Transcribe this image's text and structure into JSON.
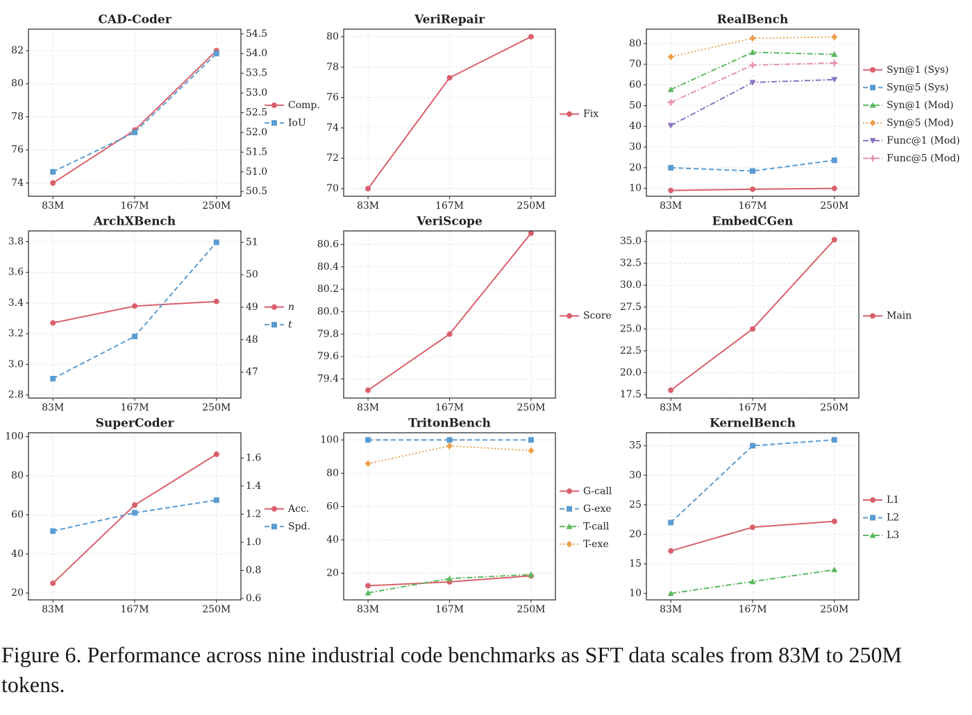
{
  "caption": "Figure 6. Performance across nine industrial code benchmarks as SFT data scales from 83M to 250M tokens.",
  "colors": {
    "red": "#d9606b",
    "blue": "#5a9bd0",
    "green": "#5cb85f",
    "orange": "#eba150",
    "purple": "#8b72c0",
    "pink": "#e68fae",
    "grid": "#dcdcdc"
  },
  "chart_data": [
    {
      "title": "CAD-Coder",
      "type": "line",
      "categories": [
        "83M",
        "167M",
        "250M"
      ],
      "ylim": [
        73.2,
        83.3
      ],
      "yticks": [
        74,
        76,
        78,
        80,
        82
      ],
      "y2lim": [
        50.38,
        54.62
      ],
      "y2ticks": [
        "50.5",
        "51.0",
        "51.5",
        "52.0",
        "52.5",
        "53.0",
        "53.5",
        "54.0",
        "54.5"
      ],
      "series": [
        {
          "name": "Comp.",
          "values": [
            74.0,
            77.2,
            82.0
          ],
          "axis": "left",
          "color": "red",
          "dash": "solid",
          "marker": "circle"
        },
        {
          "name": "IoU",
          "values": [
            51.0,
            52.0,
            54.0
          ],
          "axis": "right",
          "color": "blue",
          "dash": "dash",
          "marker": "square"
        }
      ]
    },
    {
      "title": "VeriRepair",
      "type": "line",
      "categories": [
        "83M",
        "167M",
        "250M"
      ],
      "ylim": [
        69.5,
        80.5
      ],
      "yticks": [
        70,
        72,
        74,
        76,
        78,
        80
      ],
      "series": [
        {
          "name": "Fix",
          "values": [
            70.0,
            77.3,
            80.0
          ],
          "axis": "left",
          "color": "red",
          "dash": "solid",
          "marker": "circle"
        }
      ]
    },
    {
      "title": "RealBench",
      "type": "line",
      "categories": [
        "83M",
        "167M",
        "250M"
      ],
      "ylim": [
        6.2,
        87.0
      ],
      "yticks": [
        10,
        20,
        30,
        40,
        50,
        60,
        70,
        80
      ],
      "series": [
        {
          "name": "Syn@1 (Sys)",
          "values": [
            9.0,
            9.6,
            10.0
          ],
          "axis": "left",
          "color": "red",
          "dash": "solid",
          "marker": "circle"
        },
        {
          "name": "Syn@5 (Sys)",
          "values": [
            20.0,
            18.4,
            23.6
          ],
          "axis": "left",
          "color": "blue",
          "dash": "dash",
          "marker": "square"
        },
        {
          "name": "Syn@1 (Mod)",
          "values": [
            57.8,
            75.8,
            74.8
          ],
          "axis": "left",
          "color": "green",
          "dash": "dashdot",
          "marker": "triangle-up"
        },
        {
          "name": "Syn@5 (Mod)",
          "values": [
            73.6,
            82.6,
            83.2
          ],
          "axis": "left",
          "color": "orange",
          "dash": "dot",
          "marker": "diamond"
        },
        {
          "name": "Func@1 (Mod)",
          "values": [
            40.4,
            61.2,
            62.6
          ],
          "axis": "left",
          "color": "purple",
          "dash": "dashdot",
          "marker": "triangle-down"
        },
        {
          "name": "Func@5 (Mod)",
          "values": [
            51.6,
            69.6,
            70.6
          ],
          "axis": "left",
          "color": "pink",
          "dash": "dashdot",
          "marker": "plus"
        }
      ]
    },
    {
      "title": "ArchXBench",
      "type": "line",
      "categories": [
        "83M",
        "167M",
        "250M"
      ],
      "ylim": [
        2.78,
        3.87
      ],
      "yticks": [
        "2.8",
        "3.0",
        "3.2",
        "3.4",
        "3.6",
        "3.8"
      ],
      "y2lim": [
        46.2,
        51.35
      ],
      "y2ticks": [
        47,
        48,
        49,
        50,
        51
      ],
      "series": [
        {
          "name": "n",
          "values": [
            3.27,
            3.38,
            3.41
          ],
          "axis": "left",
          "color": "red",
          "dash": "solid",
          "marker": "circle"
        },
        {
          "name": "t",
          "values": [
            46.8,
            48.1,
            51.0
          ],
          "axis": "right",
          "color": "blue",
          "dash": "dash",
          "marker": "square"
        }
      ]
    },
    {
      "title": "VeriScope",
      "type": "line",
      "categories": [
        "83M",
        "167M",
        "250M"
      ],
      "ylim": [
        79.23,
        80.72
      ],
      "yticks": [
        "79.4",
        "79.6",
        "79.8",
        "80.0",
        "80.2",
        "80.4",
        "80.6"
      ],
      "series": [
        {
          "name": "Score",
          "values": [
            79.3,
            79.8,
            80.7
          ],
          "axis": "left",
          "color": "red",
          "dash": "solid",
          "marker": "circle"
        }
      ]
    },
    {
      "title": "EmbedCGen",
      "type": "line",
      "categories": [
        "83M",
        "167M",
        "250M"
      ],
      "ylim": [
        17.1,
        36.2
      ],
      "yticks": [
        "17.5",
        "20.0",
        "22.5",
        "25.0",
        "27.5",
        "30.0",
        "32.5",
        "35.0"
      ],
      "series": [
        {
          "name": "Main",
          "values": [
            18.0,
            25.0,
            35.2
          ],
          "axis": "left",
          "color": "red",
          "dash": "solid",
          "marker": "circle"
        }
      ]
    },
    {
      "title": "SuperCoder",
      "type": "line",
      "categories": [
        "83M",
        "167M",
        "250M"
      ],
      "ylim": [
        16.5,
        102.0
      ],
      "yticks": [
        20,
        40,
        60,
        80,
        100
      ],
      "y2lim": [
        0.59,
        1.78
      ],
      "y2ticks": [
        "0.6",
        "0.8",
        "1.0",
        "1.2",
        "1.4",
        "1.6"
      ],
      "series": [
        {
          "name": "Acc.",
          "values": [
            25.0,
            65.0,
            91.0
          ],
          "axis": "left",
          "color": "red",
          "dash": "solid",
          "marker": "circle"
        },
        {
          "name": "Spd.",
          "values": [
            1.08,
            1.21,
            1.3
          ],
          "axis": "right",
          "color": "blue",
          "dash": "dash",
          "marker": "square"
        }
      ]
    },
    {
      "title": "TritonBench",
      "type": "line",
      "categories": [
        "83M",
        "167M",
        "250M"
      ],
      "ylim": [
        4.0,
        104.3
      ],
      "yticks": [
        20,
        40,
        60,
        80,
        100
      ],
      "series": [
        {
          "name": "G-call",
          "values": [
            12.5,
            14.8,
            18.4
          ],
          "axis": "left",
          "color": "red",
          "dash": "solid",
          "marker": "circle"
        },
        {
          "name": "G-exe",
          "values": [
            100,
            100,
            100
          ],
          "axis": "left",
          "color": "blue",
          "dash": "dash",
          "marker": "square"
        },
        {
          "name": "T-call",
          "values": [
            8.2,
            16.8,
            19.2
          ],
          "axis": "left",
          "color": "green",
          "dash": "dashdot",
          "marker": "triangle-up"
        },
        {
          "name": "T-exe",
          "values": [
            85.8,
            96.4,
            93.6
          ],
          "axis": "left",
          "color": "orange",
          "dash": "dot",
          "marker": "diamond"
        }
      ]
    },
    {
      "title": "KernelBench",
      "type": "line",
      "categories": [
        "83M",
        "167M",
        "250M"
      ],
      "ylim": [
        8.9,
        37.2
      ],
      "yticks": [
        10,
        15,
        20,
        25,
        30,
        35
      ],
      "series": [
        {
          "name": "L1",
          "values": [
            17.2,
            21.2,
            22.2
          ],
          "axis": "left",
          "color": "red",
          "dash": "solid",
          "marker": "circle"
        },
        {
          "name": "L2",
          "values": [
            22.0,
            35.0,
            36.0
          ],
          "axis": "left",
          "color": "blue",
          "dash": "dash",
          "marker": "square"
        },
        {
          "name": "L3",
          "values": [
            10.0,
            12.0,
            14.0
          ],
          "axis": "left",
          "color": "green",
          "dash": "dashdot",
          "marker": "triangle-up"
        }
      ]
    }
  ]
}
